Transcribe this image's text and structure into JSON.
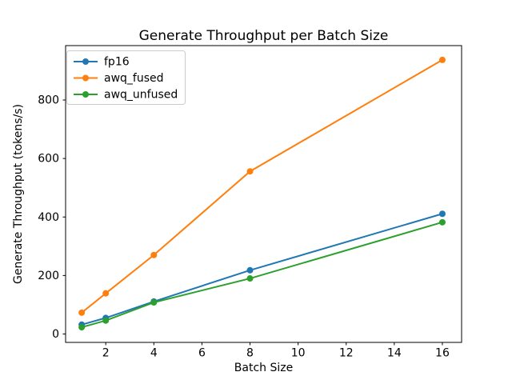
{
  "chart_data": {
    "type": "line",
    "title": "Generate Throughput per Batch Size",
    "xlabel": "Batch Size",
    "ylabel": "Generate Throughput (tokens/s)",
    "x": [
      1,
      2,
      4,
      8,
      16
    ],
    "series": [
      {
        "name": "fp16",
        "color": "#1f77b4",
        "values": [
          32,
          55,
          111,
          218,
          411
        ]
      },
      {
        "name": "awq_fused",
        "color": "#ff7f0e",
        "values": [
          73,
          139,
          270,
          556,
          937
        ]
      },
      {
        "name": "awq_unfused",
        "color": "#2ca02c",
        "values": [
          23,
          46,
          108,
          190,
          382
        ]
      }
    ],
    "xticks": [
      2,
      4,
      6,
      8,
      10,
      12,
      14,
      16
    ],
    "yticks": [
      0,
      200,
      400,
      600,
      800
    ],
    "xlim": [
      0.33,
      16.8
    ],
    "ylim": [
      -28.7,
      986
    ],
    "grid": false,
    "marker": "o",
    "legend_position": "upper left",
    "colors": {
      "spine": "#000000",
      "legend_border": "#cccccc",
      "background": "#ffffff"
    }
  }
}
